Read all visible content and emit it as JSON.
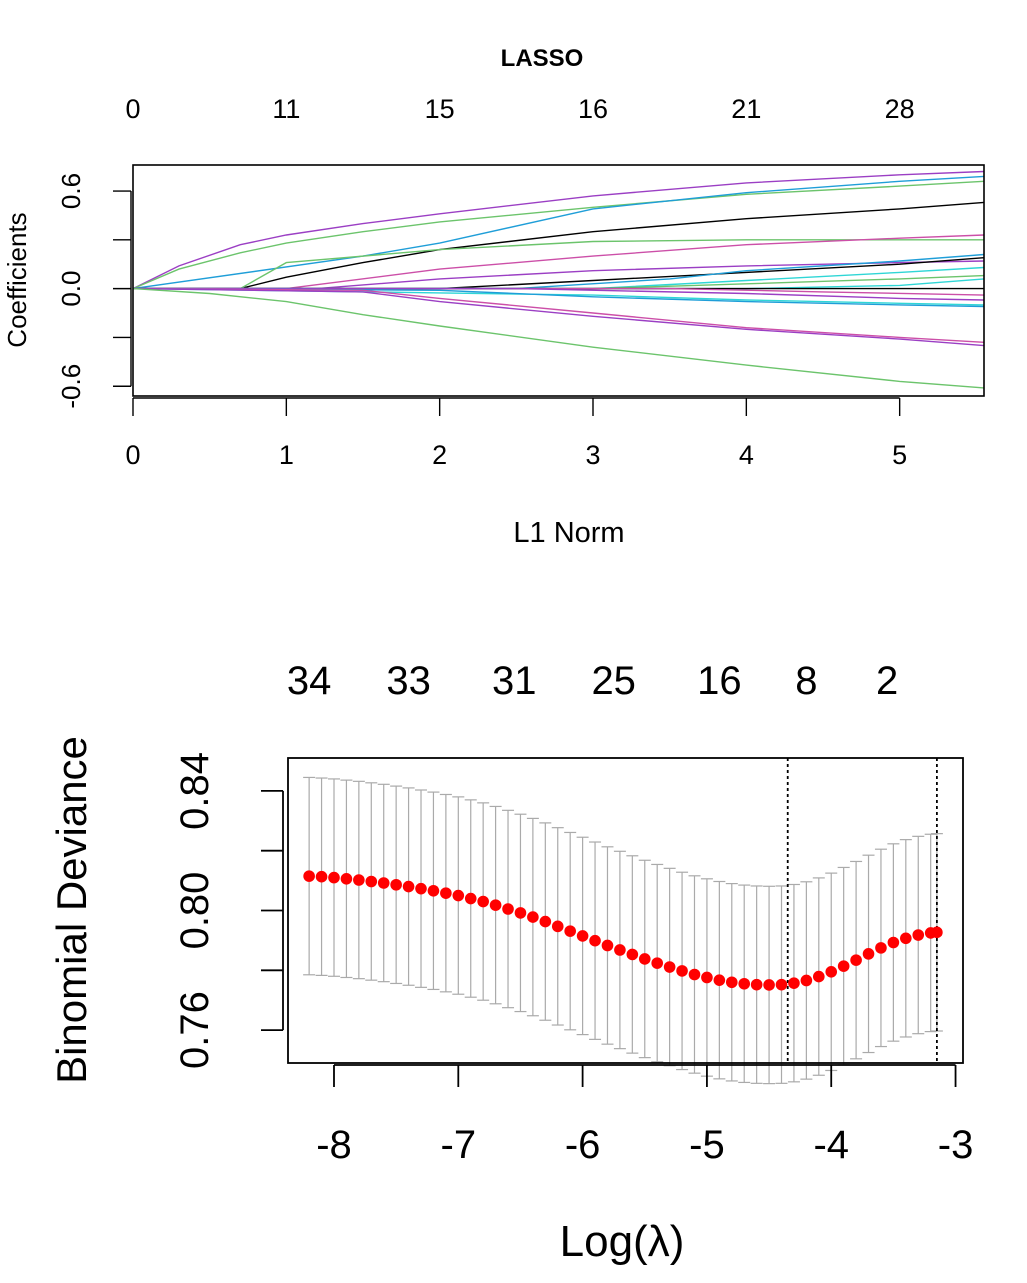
{
  "chart_data": [
    {
      "type": "line",
      "title": "LASSO",
      "xlabel": "L1 Norm",
      "ylabel": "Coefficients",
      "xlim": [
        0,
        5.55
      ],
      "ylim": [
        -0.66,
        0.76
      ],
      "x_ticks": [
        0,
        1,
        2,
        3,
        4,
        5
      ],
      "y_ticks": [
        -0.6,
        0.0,
        0.6
      ],
      "top_axis": {
        "ticks_at": [
          0,
          1,
          2,
          3,
          4,
          5
        ],
        "labels": [
          "0",
          "11",
          "15",
          "16",
          "21",
          "28"
        ]
      },
      "grid": false,
      "legend": "none",
      "series": [
        {
          "color": "#9b3fc4",
          "x": [
            0,
            0.3,
            0.7,
            1.0,
            1.5,
            2.0,
            3.0,
            4.0,
            5.0,
            5.55
          ],
          "values": [
            0,
            0.14,
            0.27,
            0.33,
            0.4,
            0.46,
            0.57,
            0.65,
            0.7,
            0.72
          ]
        },
        {
          "color": "#6cc46c",
          "x": [
            0,
            0.3,
            0.7,
            1.0,
            1.5,
            2.0,
            3.0,
            4.0,
            5.0,
            5.55
          ],
          "values": [
            0,
            0.12,
            0.22,
            0.28,
            0.35,
            0.41,
            0.5,
            0.58,
            0.63,
            0.66
          ]
        },
        {
          "color": "#1f9ed8",
          "x": [
            0,
            1.5,
            2.0,
            3.0,
            4.0,
            5.0,
            5.55
          ],
          "values": [
            0,
            0.2,
            0.28,
            0.49,
            0.59,
            0.66,
            0.69
          ]
        },
        {
          "color": "#000000",
          "x": [
            0,
            0.7,
            1.0,
            1.5,
            2.0,
            3.0,
            4.0,
            5.0,
            5.55
          ],
          "values": [
            0,
            0.0,
            0.07,
            0.16,
            0.24,
            0.35,
            0.43,
            0.49,
            0.53
          ]
        },
        {
          "color": "#6cc46c",
          "x": [
            0,
            0.7,
            1.0,
            2.0,
            3.0,
            4.0,
            5.0,
            5.55
          ],
          "values": [
            0,
            0.0,
            0.16,
            0.24,
            0.29,
            0.3,
            0.3,
            0.3
          ]
        },
        {
          "color": "#cc4fa8",
          "x": [
            0,
            1.0,
            2.0,
            3.0,
            4.0,
            5.0,
            5.55
          ],
          "values": [
            0,
            0.0,
            0.12,
            0.2,
            0.27,
            0.31,
            0.33
          ]
        },
        {
          "color": "#9b3fc4",
          "x": [
            0,
            1.2,
            2.0,
            3.0,
            4.0,
            5.0,
            5.55
          ],
          "values": [
            0,
            0.0,
            0.06,
            0.11,
            0.14,
            0.16,
            0.17
          ]
        },
        {
          "color": "#000000",
          "x": [
            0,
            2.0,
            3.0,
            4.0,
            5.0,
            5.55
          ],
          "values": [
            0,
            0.0,
            0.05,
            0.1,
            0.15,
            0.19
          ]
        },
        {
          "color": "#1f9ed8",
          "x": [
            0,
            2.5,
            3.5,
            4.0,
            5.0,
            5.55
          ],
          "values": [
            0,
            0.0,
            0.06,
            0.11,
            0.17,
            0.21
          ]
        },
        {
          "color": "#2fd6d6",
          "x": [
            0,
            3.0,
            4.0,
            5.0,
            5.55
          ],
          "values": [
            0,
            0.0,
            0.05,
            0.1,
            0.13
          ]
        },
        {
          "color": "#6cc46c",
          "x": [
            0,
            3.0,
            4.0,
            5.0,
            5.55
          ],
          "values": [
            0,
            0.0,
            0.03,
            0.06,
            0.08
          ]
        },
        {
          "color": "#2fd6d6",
          "x": [
            0,
            3.0,
            4.0,
            5.0,
            5.55
          ],
          "values": [
            0,
            0.0,
            0.0,
            0.02,
            0.06
          ]
        },
        {
          "color": "#000000",
          "x": [
            0,
            4.0,
            5.0,
            5.55
          ],
          "values": [
            0,
            0.0,
            0.0,
            0.0
          ]
        },
        {
          "color": "#cc4fa8",
          "x": [
            0,
            3.5,
            4.5,
            5.55
          ],
          "values": [
            0,
            0.0,
            -0.02,
            -0.04
          ]
        },
        {
          "color": "#9b3fc4",
          "x": [
            0,
            2.5,
            4.0,
            5.0,
            5.55
          ],
          "values": [
            0,
            0.0,
            -0.03,
            -0.06,
            -0.07
          ]
        },
        {
          "color": "#2fd6d6",
          "x": [
            0,
            3.0,
            4.0,
            5.0,
            5.55
          ],
          "values": [
            0,
            -0.04,
            -0.07,
            -0.09,
            -0.1
          ]
        },
        {
          "color": "#1f9ed8",
          "x": [
            0,
            2.0,
            3.0,
            4.0,
            5.0,
            5.55
          ],
          "values": [
            0,
            -0.01,
            -0.05,
            -0.08,
            -0.1,
            -0.11
          ]
        },
        {
          "color": "#cc4fa8",
          "x": [
            0,
            1.5,
            2.0,
            3.0,
            4.0,
            5.0,
            5.55
          ],
          "values": [
            0,
            -0.01,
            -0.06,
            -0.15,
            -0.24,
            -0.3,
            -0.33
          ]
        },
        {
          "color": "#9b3fc4",
          "x": [
            0,
            1.5,
            2.0,
            3.0,
            4.0,
            5.0,
            5.55
          ],
          "values": [
            0,
            -0.02,
            -0.08,
            -0.17,
            -0.25,
            -0.31,
            -0.35
          ]
        },
        {
          "color": "#6cc46c",
          "x": [
            0,
            0.5,
            1.0,
            1.5,
            2.0,
            3.0,
            4.0,
            5.0,
            5.55
          ],
          "values": [
            0,
            -0.03,
            -0.08,
            -0.16,
            -0.23,
            -0.36,
            -0.47,
            -0.57,
            -0.61
          ]
        }
      ]
    },
    {
      "type": "scatter",
      "title": "",
      "xlabel": "Log(λ)",
      "ylabel": "Binomial Deviance",
      "xlim": [
        -8.37,
        -2.94
      ],
      "ylim": [
        0.749,
        0.851
      ],
      "x_ticks": [
        -8,
        -7,
        -6,
        -5,
        -4,
        -3
      ],
      "y_ticks": [
        0.76,
        0.8,
        0.84
      ],
      "y_minor_ticks": [
        0.78,
        0.82
      ],
      "top_axis": {
        "ticks_at": [
          -8.2,
          -7.4,
          -6.55,
          -5.75,
          -4.9,
          -4.2,
          -3.55
        ],
        "labels": [
          "34",
          "33",
          "31",
          "25",
          "16",
          "8",
          "2"
        ]
      },
      "vlines": [
        -4.35,
        -3.15
      ],
      "grid": false,
      "legend": "none",
      "point_color": "#ff0000",
      "errorbar_color": "#aaaaaa",
      "x": [
        -8.2,
        -8.1,
        -8.0,
        -7.9,
        -7.8,
        -7.7,
        -7.6,
        -7.5,
        -7.4,
        -7.3,
        -7.2,
        -7.1,
        -7.0,
        -6.9,
        -6.8,
        -6.7,
        -6.6,
        -6.5,
        -6.4,
        -6.3,
        -6.2,
        -6.1,
        -6.0,
        -5.9,
        -5.8,
        -5.7,
        -5.6,
        -5.5,
        -5.4,
        -5.3,
        -5.2,
        -5.1,
        -5.0,
        -4.9,
        -4.8,
        -4.7,
        -4.6,
        -4.5,
        -4.4,
        -4.3,
        -4.2,
        -4.1,
        -4.0,
        -3.9,
        -3.8,
        -3.7,
        -3.6,
        -3.5,
        -3.4,
        -3.3,
        -3.2,
        -3.15
      ],
      "values": [
        0.8115,
        0.8113,
        0.811,
        0.8106,
        0.8102,
        0.8097,
        0.8092,
        0.8086,
        0.808,
        0.8073,
        0.8066,
        0.8058,
        0.805,
        0.804,
        0.803,
        0.8018,
        0.8005,
        0.7992,
        0.7978,
        0.7963,
        0.7947,
        0.7931,
        0.7915,
        0.7899,
        0.7883,
        0.7868,
        0.7853,
        0.7838,
        0.7824,
        0.7811,
        0.7798,
        0.7786,
        0.7776,
        0.7767,
        0.776,
        0.7755,
        0.7752,
        0.7751,
        0.7752,
        0.7757,
        0.7766,
        0.7779,
        0.7795,
        0.7814,
        0.7834,
        0.7855,
        0.7875,
        0.7893,
        0.7907,
        0.7918,
        0.7925,
        0.7927
      ],
      "upper": [
        0.8445,
        0.8443,
        0.844,
        0.8436,
        0.8432,
        0.8427,
        0.8422,
        0.8416,
        0.841,
        0.8403,
        0.8396,
        0.8388,
        0.838,
        0.837,
        0.836,
        0.8348,
        0.8335,
        0.8322,
        0.8308,
        0.8293,
        0.8277,
        0.8261,
        0.8245,
        0.8229,
        0.8213,
        0.8198,
        0.8183,
        0.8168,
        0.8154,
        0.8141,
        0.8128,
        0.8116,
        0.8106,
        0.8097,
        0.809,
        0.8085,
        0.8082,
        0.8081,
        0.8082,
        0.8087,
        0.8096,
        0.8109,
        0.8125,
        0.8144,
        0.8164,
        0.8185,
        0.8205,
        0.8223,
        0.8237,
        0.8248,
        0.8255,
        0.8257
      ],
      "lower": [
        0.7785,
        0.7783,
        0.778,
        0.7776,
        0.7772,
        0.7767,
        0.7762,
        0.7756,
        0.775,
        0.7743,
        0.7736,
        0.7728,
        0.772,
        0.771,
        0.77,
        0.7688,
        0.7675,
        0.7662,
        0.7648,
        0.7633,
        0.7617,
        0.7601,
        0.7585,
        0.7569,
        0.7553,
        0.7538,
        0.7523,
        0.7508,
        0.7494,
        0.7481,
        0.7468,
        0.7456,
        0.7446,
        0.7437,
        0.743,
        0.7425,
        0.7422,
        0.7421,
        0.7422,
        0.7427,
        0.7436,
        0.7449,
        0.7465,
        0.7484,
        0.7504,
        0.7525,
        0.7545,
        0.7563,
        0.7577,
        0.7588,
        0.7595,
        0.7597
      ]
    }
  ]
}
